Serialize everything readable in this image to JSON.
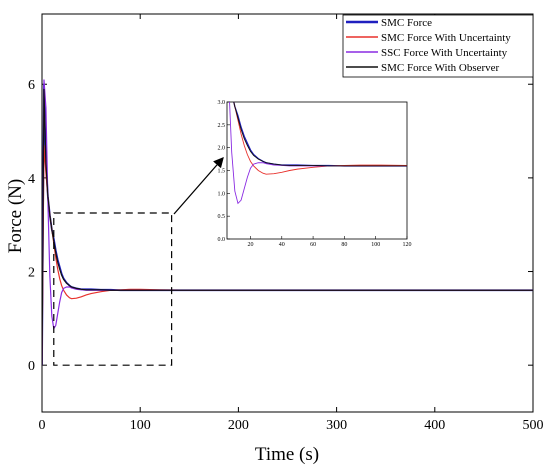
{
  "chart_data": {
    "type": "line",
    "title": "",
    "xlabel": "Time (s)",
    "ylabel": "Force (N)",
    "xlim": [
      0,
      500
    ],
    "ylim": [
      -1,
      7.5
    ],
    "xticks": [
      "0",
      "100",
      "200",
      "300",
      "400",
      "500"
    ],
    "yticks": [
      "0",
      "2",
      "4",
      "6"
    ],
    "legend_position": "top-right",
    "series": [
      {
        "name": "SMC Force",
        "color": "#1f1fbf",
        "x": [
          0,
          2,
          4,
          6,
          8,
          10,
          12,
          14,
          16,
          18,
          20,
          22,
          25,
          28,
          30,
          35,
          40,
          45,
          50,
          60,
          70,
          80,
          90,
          100,
          120,
          150,
          200,
          300,
          400,
          500
        ],
        "y": [
          0,
          6.0,
          4.3,
          3.6,
          3.2,
          2.9,
          2.7,
          2.45,
          2.25,
          2.1,
          1.95,
          1.85,
          1.76,
          1.7,
          1.67,
          1.64,
          1.62,
          1.62,
          1.62,
          1.61,
          1.61,
          1.6,
          1.6,
          1.6,
          1.6,
          1.6,
          1.6,
          1.6,
          1.6,
          1.6
        ]
      },
      {
        "name": "SMC Force With Uncertainty",
        "color": "#e8312c",
        "x": [
          0,
          2,
          4,
          6,
          8,
          10,
          12,
          14,
          16,
          18,
          20,
          22,
          25,
          28,
          30,
          35,
          40,
          45,
          50,
          60,
          70,
          80,
          90,
          100,
          120,
          150,
          200,
          300,
          400,
          500
        ],
        "y": [
          0,
          4.7,
          4.1,
          3.6,
          3.2,
          2.9,
          2.6,
          2.3,
          2.05,
          1.85,
          1.7,
          1.6,
          1.5,
          1.44,
          1.42,
          1.43,
          1.46,
          1.5,
          1.53,
          1.57,
          1.6,
          1.61,
          1.62,
          1.62,
          1.61,
          1.6,
          1.6,
          1.6,
          1.6,
          1.6
        ]
      },
      {
        "name": "SSC Force With Uncertainty",
        "color": "#8a2be2",
        "x": [
          0,
          2,
          4,
          6,
          8,
          10,
          12,
          14,
          16,
          18,
          20,
          22,
          25,
          28,
          30,
          35,
          40,
          45,
          50,
          60,
          70,
          80,
          90,
          100,
          120,
          150,
          200,
          300,
          400,
          500
        ],
        "y": [
          0,
          6.1,
          5.5,
          3.5,
          1.9,
          1.05,
          0.78,
          0.85,
          1.1,
          1.35,
          1.55,
          1.64,
          1.67,
          1.67,
          1.65,
          1.62,
          1.61,
          1.6,
          1.6,
          1.6,
          1.6,
          1.6,
          1.6,
          1.6,
          1.6,
          1.6,
          1.6,
          1.6,
          1.6,
          1.6
        ]
      },
      {
        "name": "SMC Force With Observer",
        "color": "#111111",
        "x": [
          0,
          2,
          4,
          6,
          8,
          10,
          12,
          14,
          16,
          18,
          20,
          22,
          25,
          28,
          30,
          35,
          40,
          45,
          50,
          60,
          70,
          80,
          90,
          100,
          120,
          150,
          200,
          300,
          400,
          500
        ],
        "y": [
          0,
          5.9,
          4.3,
          3.6,
          3.2,
          2.9,
          2.65,
          2.4,
          2.2,
          2.05,
          1.92,
          1.83,
          1.75,
          1.7,
          1.67,
          1.64,
          1.62,
          1.61,
          1.61,
          1.61,
          1.6,
          1.6,
          1.6,
          1.6,
          1.6,
          1.6,
          1.6,
          1.6,
          1.6,
          1.6
        ]
      }
    ],
    "zoom_region": {
      "xlim": [
        12,
        132
      ],
      "ylim": [
        0,
        3.25
      ]
    },
    "inset": {
      "xlim": [
        5,
        120
      ],
      "ylim": [
        0,
        3.0
      ],
      "xticks": [
        "20",
        "40",
        "60",
        "80",
        "100",
        "120"
      ],
      "yticks": [
        "0.0",
        "0.5",
        "1.0",
        "1.5",
        "2.0",
        "2.5",
        "3.0"
      ]
    }
  }
}
